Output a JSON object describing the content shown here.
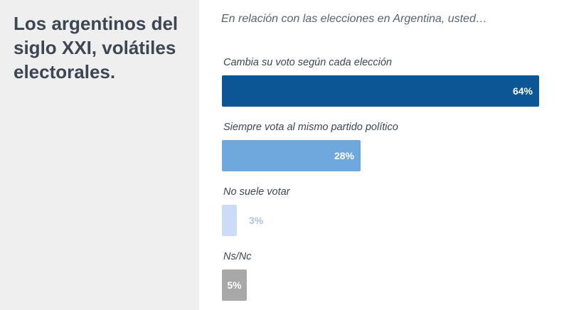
{
  "sidebar": {
    "title": "Los argentinos del siglo XXI, volátiles electorales."
  },
  "chart_data": {
    "type": "bar",
    "orientation": "horizontal",
    "title": "En relación con las elecciones en Argentina, usted…",
    "unit": "%",
    "categories": [
      "Cambia su voto según cada elección",
      "Siempre vota al mismo partido político",
      "No suele votar",
      "Ns/Nc"
    ],
    "values": [
      64,
      28,
      3,
      5
    ],
    "value_labels": [
      "64%",
      "28%",
      "3%",
      "5%"
    ],
    "colors": [
      "#0c5696",
      "#6fa8dc",
      "#ccdcf6",
      "#a8a8a8"
    ],
    "value_label_colors": [
      "#ffffff",
      "#ffffff",
      "#aec3e6",
      "#ffffff"
    ],
    "xlim": [
      0,
      64
    ],
    "grid": false,
    "legend": "none"
  }
}
